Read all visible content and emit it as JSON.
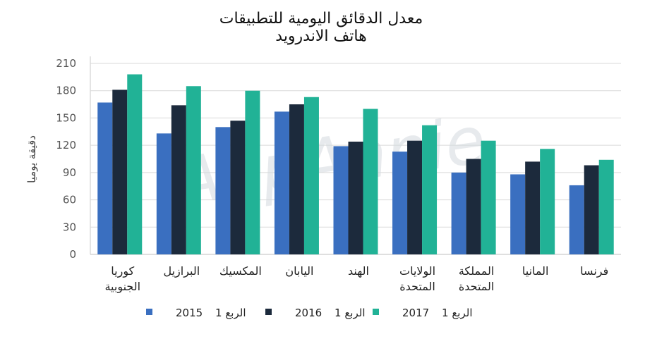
{
  "chart_data": {
    "type": "bar",
    "title": [
      "معدل الدقائق اليومية للتطبيقات",
      "هاتف الاندرويد"
    ],
    "ylabel": "دقيقة يوميا",
    "ylim": [
      0,
      210
    ],
    "yticks": [
      0,
      30,
      60,
      90,
      120,
      150,
      180,
      210
    ],
    "grid": "horizontal",
    "legend_position": "bottom",
    "watermark": "AppAnnie",
    "categories": [
      [
        "كوريا",
        "الجنوبية"
      ],
      [
        "البرازيل"
      ],
      [
        "المكسيك"
      ],
      [
        "اليابان"
      ],
      [
        "الهند"
      ],
      [
        "الولايات",
        "المتحدة"
      ],
      [
        "المملكة",
        "المتحدة"
      ],
      [
        "المانيا"
      ],
      [
        "فرنسا"
      ]
    ],
    "series": [
      {
        "name": "الربع 1 2015",
        "legend_label": "الربع 1",
        "legend_year": "2015",
        "color": "#3a6fc0",
        "values": [
          167,
          133,
          140,
          157,
          119,
          113,
          90,
          88,
          76
        ]
      },
      {
        "name": "الربع 1 2016",
        "legend_label": "الربع 1",
        "legend_year": "2016",
        "color": "#1c2a3c",
        "values": [
          181,
          164,
          147,
          165,
          124,
          125,
          105,
          102,
          98
        ]
      },
      {
        "name": "الربع 1 2017",
        "legend_label": "الربع 1",
        "legend_year": "2017",
        "color": "#21b296",
        "values": [
          198,
          185,
          180,
          173,
          160,
          142,
          125,
          116,
          104
        ]
      }
    ]
  }
}
